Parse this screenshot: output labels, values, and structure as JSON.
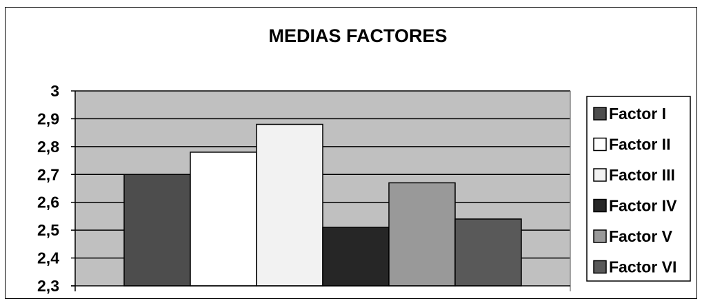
{
  "chart_data": {
    "type": "bar",
    "title": "MEDIAS FACTORES",
    "xlabel": "",
    "ylabel": "",
    "ylim": [
      2.3,
      3.0
    ],
    "yticks": [
      {
        "value": 2.3,
        "label": "2,3"
      },
      {
        "value": 2.4,
        "label": "2,4"
      },
      {
        "value": 2.5,
        "label": "2,5"
      },
      {
        "value": 2.6,
        "label": "2,6"
      },
      {
        "value": 2.7,
        "label": "2,7"
      },
      {
        "value": 2.8,
        "label": "2,8"
      },
      {
        "value": 2.9,
        "label": "2,9"
      },
      {
        "value": 3.0,
        "label": "3"
      }
    ],
    "grid": true,
    "legend_position": "right",
    "plot_background": "#c0c0c0",
    "series": [
      {
        "name": "Factor I",
        "values": [
          2.7
        ],
        "color": "#4d4d4d"
      },
      {
        "name": "Factor II",
        "values": [
          2.78
        ],
        "color": "#ffffff"
      },
      {
        "name": "Factor III",
        "values": [
          2.88
        ],
        "color": "#f2f2f2"
      },
      {
        "name": "Factor IV",
        "values": [
          2.51
        ],
        "color": "#262626"
      },
      {
        "name": "Factor V",
        "values": [
          2.67
        ],
        "color": "#999999"
      },
      {
        "name": "Factor VI",
        "values": [
          2.54
        ],
        "color": "#595959"
      }
    ]
  }
}
